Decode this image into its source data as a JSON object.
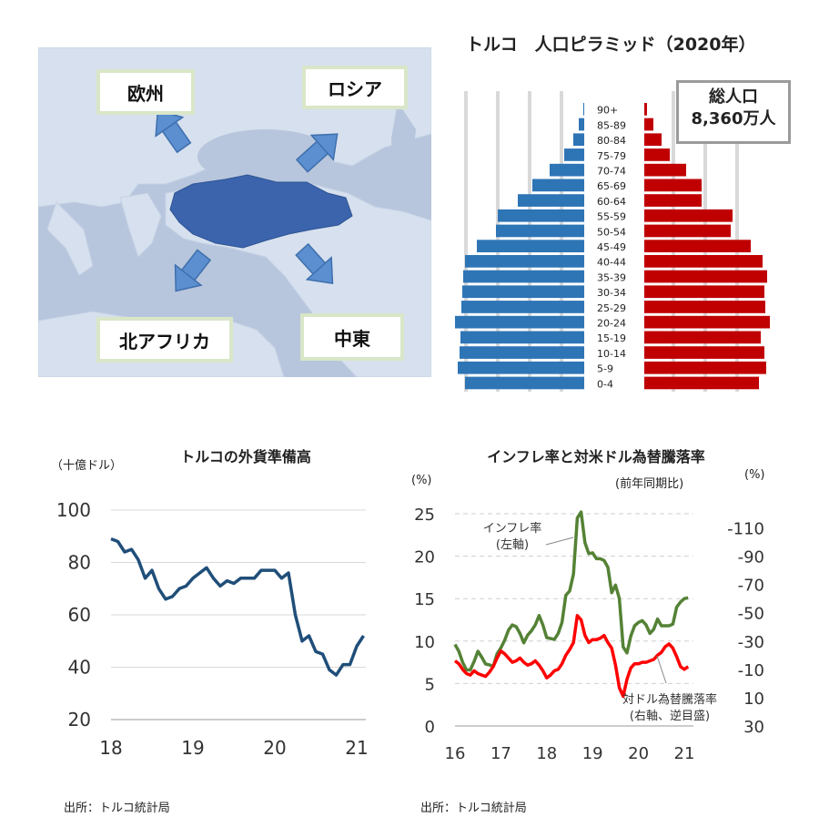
{
  "map": {
    "regions": {
      "europe": "欧州",
      "russia": "ロシア",
      "north_africa": "北アフリカ",
      "middle_east": "中東"
    },
    "colors": {
      "sea": "#b7c6dc",
      "land": "#d6e0ee",
      "turkey": "#3b64ad",
      "arrow": "#5b8fcf"
    }
  },
  "pyramid": {
    "title": "トルコ　人口ピラミッド（2020年）",
    "total_label": "総人口",
    "total_value": "8,360万人",
    "colors": {
      "male": "#2e75b6",
      "female": "#c00000"
    },
    "chart_data": {
      "type": "bar",
      "categories": [
        "0-4",
        "5-9",
        "10-14",
        "15-19",
        "20-24",
        "25-29",
        "30-34",
        "35-39",
        "40-44",
        "45-49",
        "50-54",
        "55-59",
        "60-64",
        "65-69",
        "70-74",
        "75-79",
        "80-84",
        "85-89",
        "90+"
      ],
      "series": [
        {
          "values": [
            131,
            139,
            137,
            136,
            142,
            135,
            134,
            133,
            131,
            118,
            97,
            95,
            73,
            57,
            38,
            22,
            12,
            6,
            1
          ]
        },
        {
          "values": [
            126,
            134,
            132,
            128,
            138,
            133,
            132,
            135,
            130,
            117,
            95,
            97,
            63,
            63,
            46,
            28,
            19,
            10,
            3
          ]
        }
      ]
    }
  },
  "reserves": {
    "title": "トルコの外貨準備高",
    "unit": "（十億ドル）",
    "source": "出所：トルコ統計局",
    "color": "#1f4e79",
    "chart_data": {
      "type": "line",
      "x_ticks": [
        "18",
        "19",
        "20",
        "21"
      ],
      "y_ticks": [
        "20",
        "40",
        "60",
        "80",
        "100"
      ],
      "ylim": [
        20,
        100
      ],
      "x": [
        2018.0,
        2018.083,
        2018.167,
        2018.25,
        2018.333,
        2018.417,
        2018.5,
        2018.583,
        2018.667,
        2018.75,
        2018.833,
        2018.917,
        2019.0,
        2019.083,
        2019.167,
        2019.25,
        2019.333,
        2019.417,
        2019.5,
        2019.583,
        2019.667,
        2019.75,
        2019.833,
        2019.917,
        2020.0,
        2020.083,
        2020.167,
        2020.25,
        2020.333,
        2020.417,
        2020.5,
        2020.583,
        2020.667,
        2020.75,
        2020.833,
        2020.917,
        2021.0,
        2021.083
      ],
      "values": [
        89,
        88,
        84,
        85,
        81,
        74,
        77,
        70,
        66,
        67,
        70,
        71,
        74,
        76,
        78,
        74,
        71,
        73,
        72,
        74,
        74,
        74,
        77,
        77,
        77,
        74,
        76,
        60,
        50,
        52,
        46,
        45,
        39,
        37,
        41,
        41,
        48,
        52
      ]
    }
  },
  "inflation": {
    "title": "インフレ率と対米ドル為替騰落率",
    "left_unit": "(%)",
    "right_unit": "(%)",
    "right_note": "(前年同期比)",
    "source": "出所：トルコ統計局",
    "annotation_inflation": [
      "インフレ率",
      "(左軸)"
    ],
    "annotation_fx": [
      "対ドル為替騰落率",
      "(右軸、逆目盛)"
    ],
    "colors": {
      "inflation": "#548235",
      "fx": "#ff0000"
    },
    "chart_data": {
      "type": "line",
      "x_ticks": [
        "16",
        "17",
        "18",
        "19",
        "20",
        "21"
      ],
      "left_ticks": [
        "0",
        "5",
        "10",
        "15",
        "20",
        "25"
      ],
      "right_ticks": [
        "-110",
        "-90",
        "-70",
        "-50",
        "-30",
        "-10",
        "10",
        "30"
      ],
      "ylim_left": [
        0,
        25
      ],
      "ylim_right": [
        30,
        -120
      ],
      "x": [
        2016.0,
        2016.083,
        2016.167,
        2016.25,
        2016.333,
        2016.417,
        2016.5,
        2016.583,
        2016.667,
        2016.75,
        2016.833,
        2016.917,
        2017.0,
        2017.083,
        2017.167,
        2017.25,
        2017.333,
        2017.417,
        2017.5,
        2017.583,
        2017.667,
        2017.75,
        2017.833,
        2017.917,
        2018.0,
        2018.083,
        2018.167,
        2018.25,
        2018.333,
        2018.417,
        2018.5,
        2018.583,
        2018.667,
        2018.75,
        2018.833,
        2018.917,
        2019.0,
        2019.083,
        2019.167,
        2019.25,
        2019.333,
        2019.417,
        2019.5,
        2019.583,
        2019.667,
        2019.75,
        2019.833,
        2019.917,
        2020.0,
        2020.083,
        2020.167,
        2020.25,
        2020.333,
        2020.417,
        2020.5,
        2020.583,
        2020.667,
        2020.75,
        2020.833,
        2020.917,
        2021.0,
        2021.083
      ],
      "series": [
        {
          "axis": "left",
          "values": [
            9.6,
            8.8,
            7.5,
            6.6,
            6.6,
            7.6,
            8.8,
            8.1,
            7.3,
            7.2,
            7.0,
            8.5,
            9.2,
            10.1,
            11.3,
            11.9,
            11.7,
            10.9,
            9.8,
            10.7,
            11.2,
            11.9,
            13.0,
            11.9,
            10.4,
            10.3,
            10.2,
            10.9,
            12.2,
            15.4,
            15.9,
            17.9,
            24.5,
            25.2,
            21.6,
            20.3,
            20.4,
            19.7,
            19.7,
            19.5,
            18.7,
            15.7,
            16.6,
            15.0,
            9.3,
            8.6,
            10.6,
            11.8,
            12.2,
            12.4,
            11.9,
            10.9,
            11.4,
            12.6,
            11.8,
            11.8,
            11.8,
            12.0,
            14.0,
            14.6,
            15.0,
            15.1
          ]
        },
        {
          "axis": "right",
          "values": [
            -16,
            -14,
            -10,
            -7,
            -6,
            -9,
            -7,
            -6,
            -5,
            -8,
            -12,
            -18,
            -23,
            -21,
            -18,
            -15,
            -16,
            -18,
            -15,
            -13,
            -14,
            -16,
            -13,
            -9,
            -4,
            -6,
            -9,
            -10,
            -14,
            -20,
            -24,
            -29,
            -48,
            -45,
            -34,
            -29,
            -31,
            -31,
            -32,
            -34,
            -29,
            -25,
            -13,
            3,
            9,
            -3,
            -11,
            -14,
            -14,
            -15,
            -15,
            -16,
            -17,
            -20,
            -22,
            -26,
            -28,
            -25,
            -19,
            -12,
            -10,
            -12
          ]
        }
      ]
    }
  }
}
